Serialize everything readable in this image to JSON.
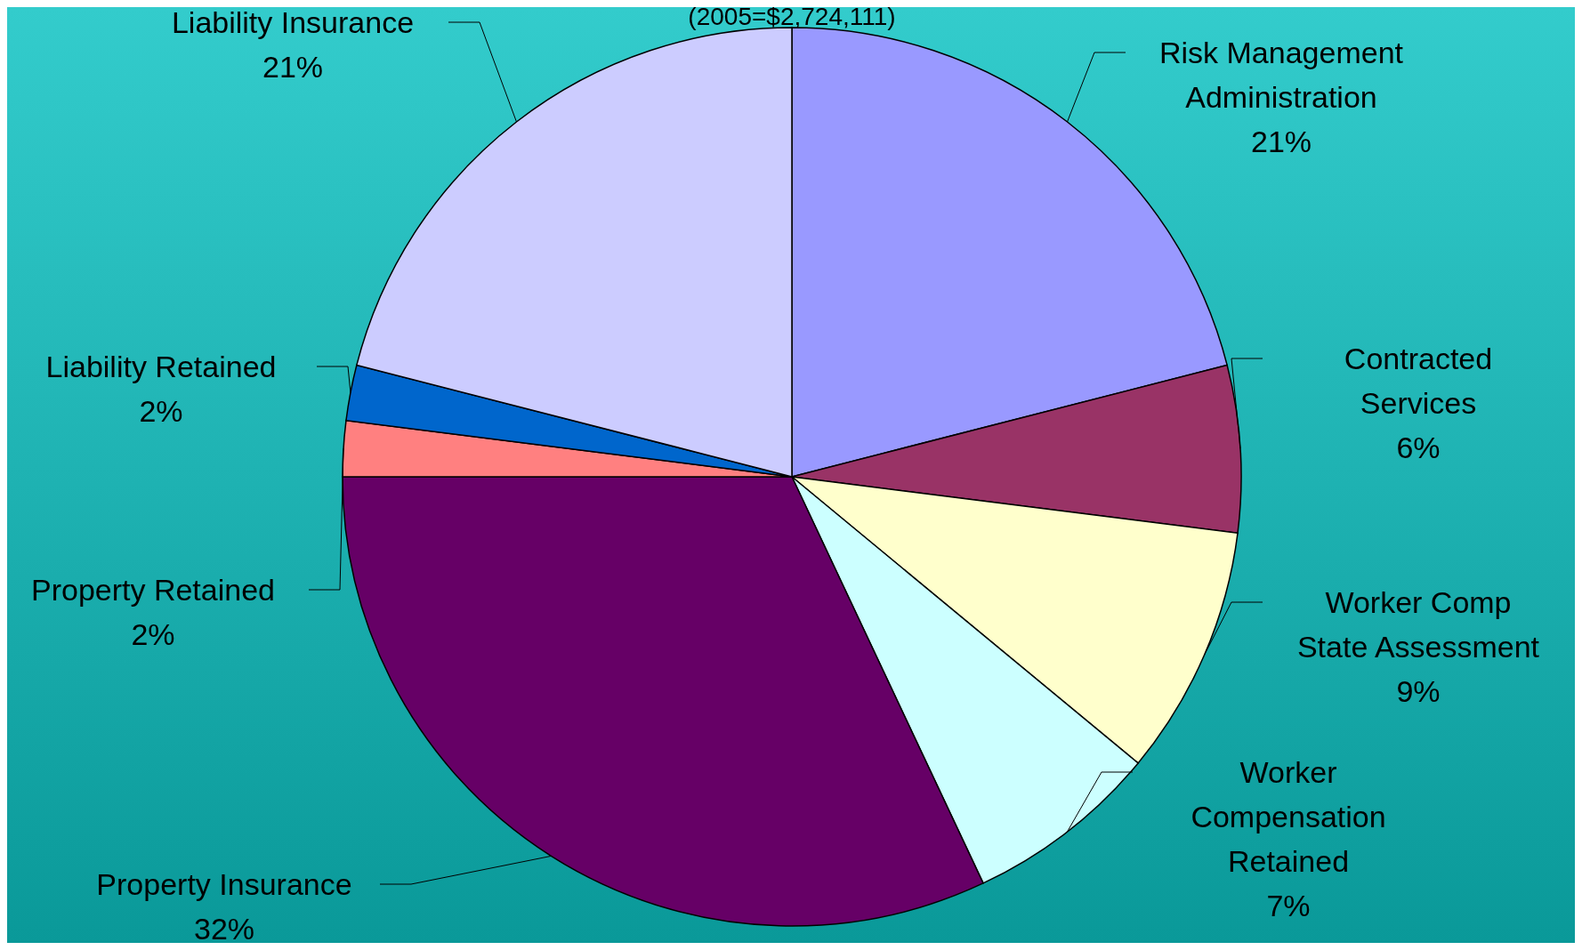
{
  "chart_data": {
    "type": "pie",
    "subtitle": "(2005=$2,724,111)",
    "categories": [
      "Risk Management Administration",
      "Contracted Services",
      "Worker Comp State Assessment",
      "Worker Compensation Retained",
      "Property Insurance",
      "Property Retained",
      "Liability Retained",
      "Liability Insurance"
    ],
    "values": [
      21,
      6,
      9,
      7,
      32,
      2,
      2,
      21
    ],
    "colors": [
      "#9999ff",
      "#993366",
      "#ffffcc",
      "#ccffff",
      "#660066",
      "#ff8080",
      "#0066cc",
      "#ccccff"
    ],
    "value_labels": [
      "21%",
      "6%",
      "9%",
      "7%",
      "32%",
      "2%",
      "2%",
      "21%"
    ]
  }
}
